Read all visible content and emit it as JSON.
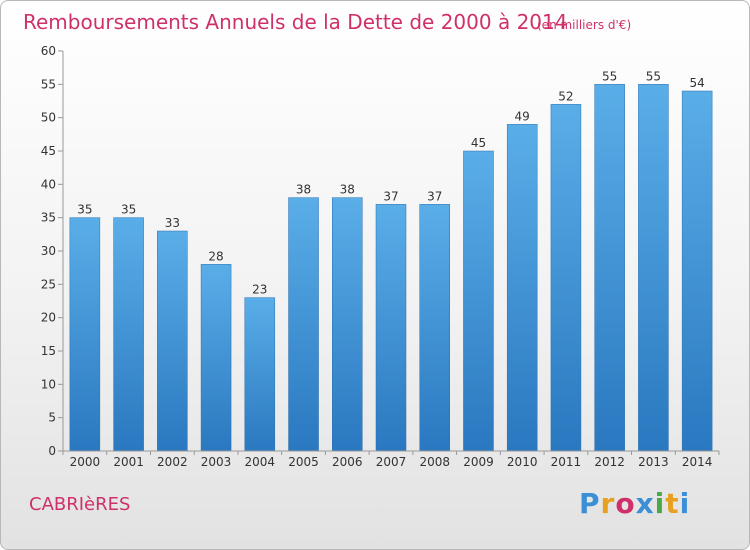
{
  "chart_data": {
    "type": "bar",
    "title": "Remboursements Annuels de la Dette de 2000 à 2014",
    "subtitle": "(en milliers d'€)",
    "categories": [
      "2000",
      "2001",
      "2002",
      "2003",
      "2004",
      "2005",
      "2006",
      "2007",
      "2008",
      "2009",
      "2010",
      "2011",
      "2012",
      "2013",
      "2014"
    ],
    "values": [
      35,
      35,
      33,
      28,
      23,
      38,
      38,
      37,
      37,
      45,
      49,
      52,
      55,
      55,
      54
    ],
    "ylim": [
      0,
      60
    ],
    "yticks": [
      0,
      5,
      10,
      15,
      20,
      25,
      30,
      35,
      40,
      45,
      50,
      55,
      60
    ],
    "xlabel": "",
    "ylabel": "",
    "grid": false,
    "bar_color": "#3a8fd6"
  },
  "footer": {
    "commune": "CABRIèRES",
    "logo_text": "Proxiti"
  },
  "colors": {
    "title": "#d0306a",
    "logo": [
      "#3a8fd6",
      "#e8a020",
      "#d0306a",
      "#3a8fd6",
      "#4aa84a",
      "#e8a020",
      "#3a8fd6"
    ]
  }
}
